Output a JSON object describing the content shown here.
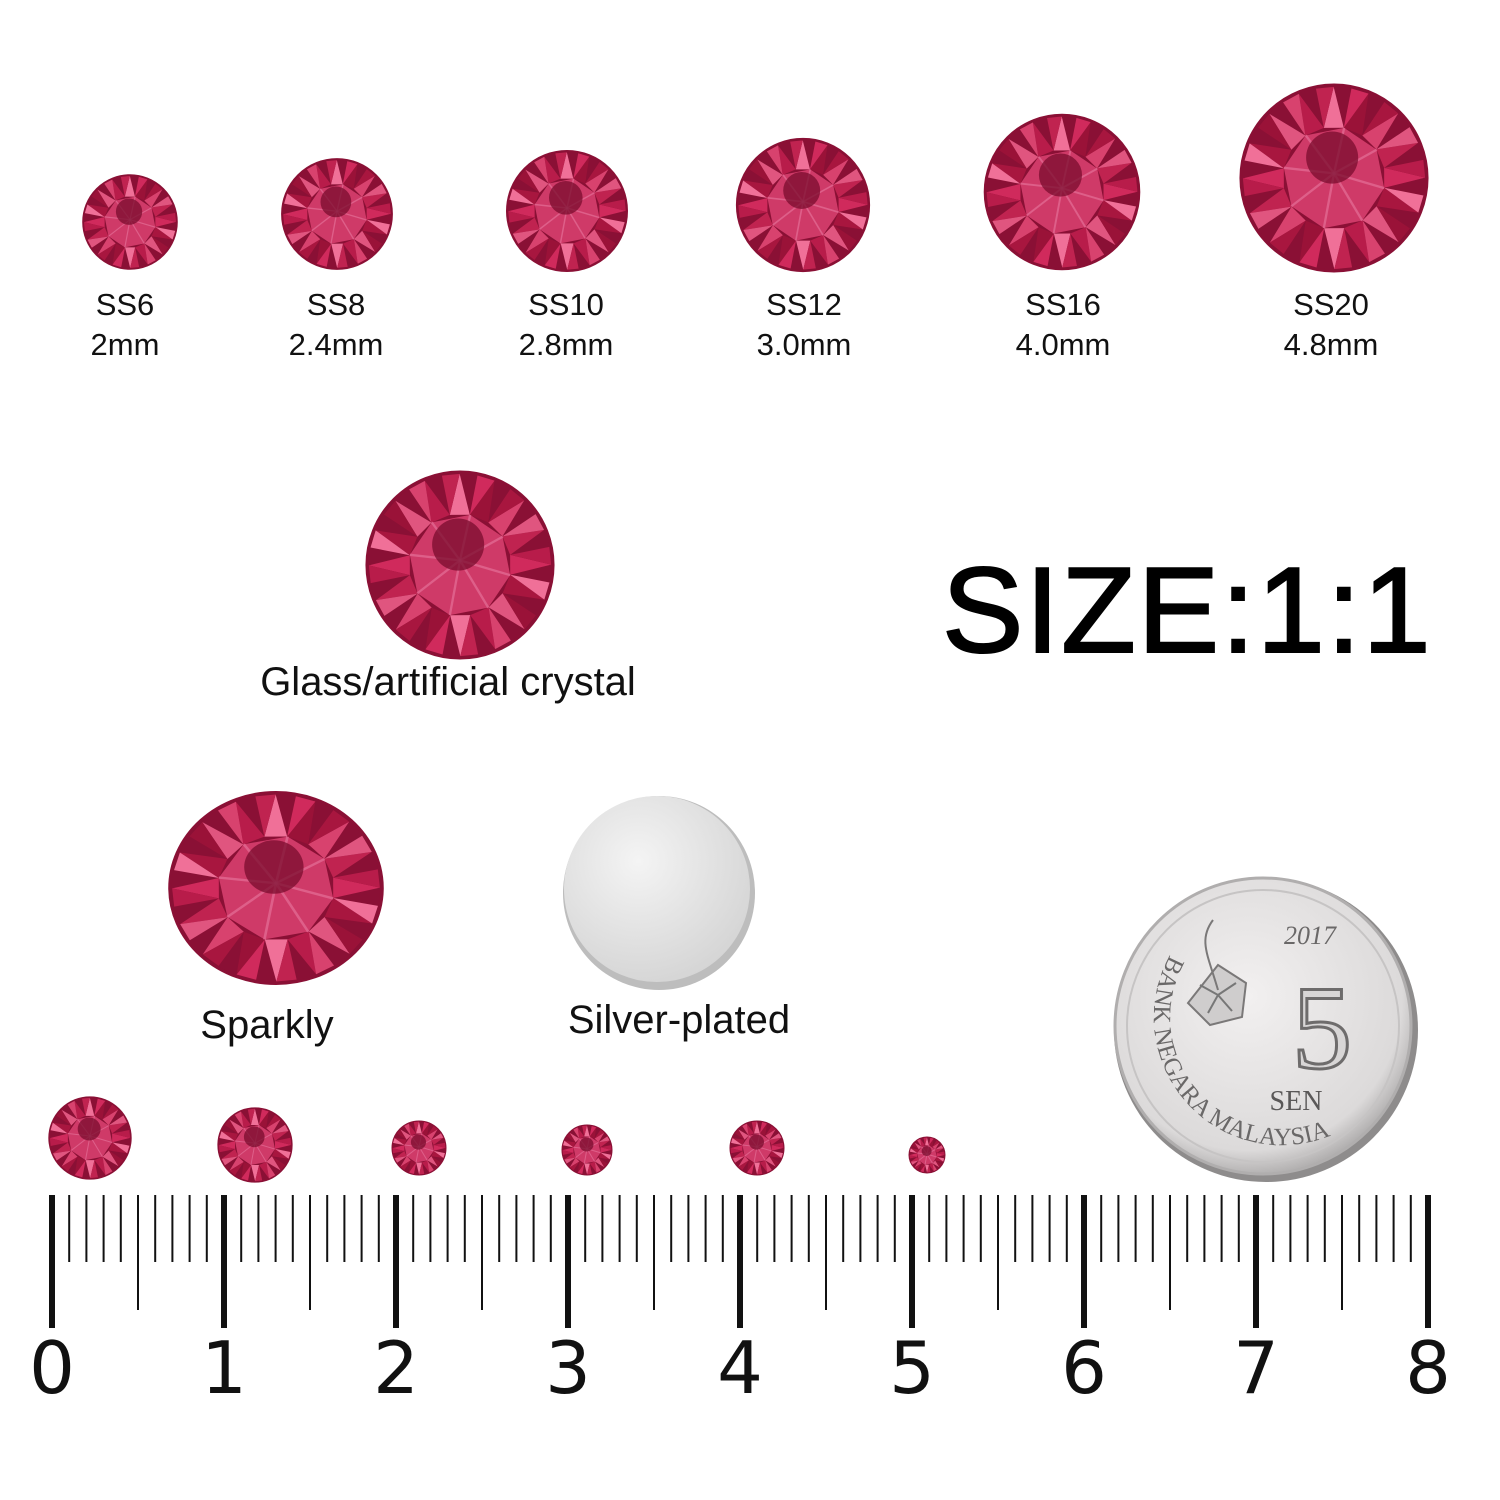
{
  "sizes": [
    {
      "code": "SS6",
      "mm": "2mm"
    },
    {
      "code": "SS8",
      "mm": "2.4mm"
    },
    {
      "code": "SS10",
      "mm": "2.8mm"
    },
    {
      "code": "SS12",
      "mm": "3.0mm"
    },
    {
      "code": "SS16",
      "mm": "4.0mm"
    },
    {
      "code": "SS20",
      "mm": "4.8mm"
    }
  ],
  "material_label": "Glass/artificial crystal",
  "scale_label": "SIZE:1:1",
  "features": {
    "front": "Sparkly",
    "back": "Silver-plated"
  },
  "coin": {
    "year": "2017",
    "value": "5",
    "unit": "SEN",
    "issuer": "BANK NEGARA MALAYSIA"
  },
  "ruler": {
    "labels": [
      "0",
      "1",
      "2",
      "3",
      "4",
      "5",
      "6",
      "7",
      "8"
    ],
    "unit": "cm"
  },
  "colors": {
    "gem": "#c8265a",
    "gem_dark": "#8a1035",
    "gem_light": "#e3608c",
    "silver": "#e6e6e6"
  }
}
